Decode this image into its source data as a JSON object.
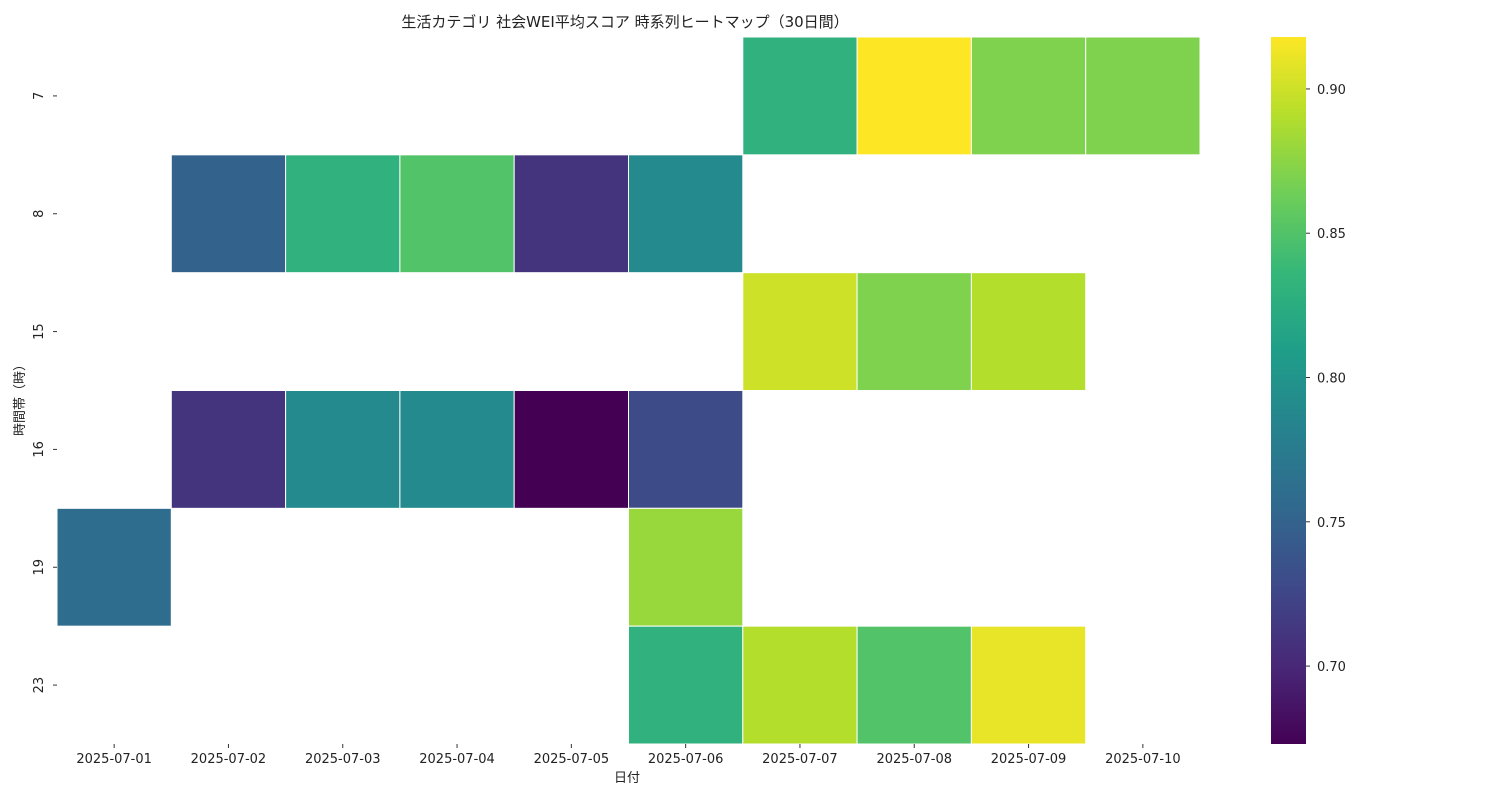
{
  "chart_data": {
    "type": "heatmap",
    "title": "生活カテゴリ 社会WEI平均スコア 時系列ヒートマップ（30日間）",
    "xlabel": "日付",
    "ylabel": "時間帯（時）",
    "x_categories": [
      "2025-07-01",
      "2025-07-02",
      "2025-07-03",
      "2025-07-04",
      "2025-07-05",
      "2025-07-06",
      "2025-07-07",
      "2025-07-08",
      "2025-07-09",
      "2025-07-10"
    ],
    "y_categories": [
      "7",
      "8",
      "15",
      "16",
      "19",
      "23"
    ],
    "values": [
      [
        null,
        null,
        null,
        null,
        null,
        null,
        0.83,
        0.92,
        0.87,
        0.87
      ],
      [
        null,
        0.75,
        0.83,
        0.85,
        0.71,
        0.79,
        null,
        null,
        null,
        null
      ],
      [
        null,
        null,
        null,
        null,
        null,
        null,
        0.9,
        0.87,
        0.89,
        null
      ],
      [
        null,
        0.71,
        0.79,
        0.79,
        0.67,
        0.73,
        null,
        null,
        null,
        null
      ],
      [
        0.76,
        null,
        null,
        null,
        null,
        0.88,
        null,
        null,
        null,
        null
      ],
      [
        null,
        null,
        null,
        null,
        null,
        0.83,
        0.89,
        0.85,
        0.91,
        null
      ]
    ],
    "colormap": "viridis",
    "vmin": 0.673,
    "vmax": 0.918,
    "colorbar_ticks": [
      0.7,
      0.75,
      0.8,
      0.85,
      0.9
    ],
    "colorbar_tick_labels": [
      "0.70",
      "0.75",
      "0.80",
      "0.85",
      "0.90"
    ],
    "colorbar_position": "right",
    "grid": false
  }
}
